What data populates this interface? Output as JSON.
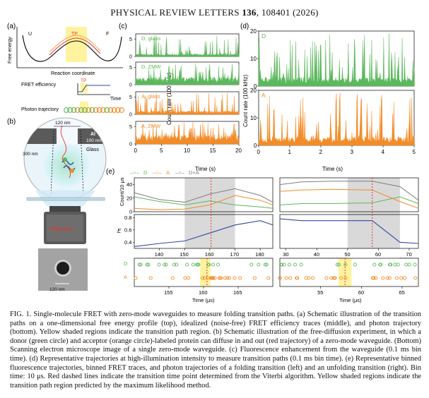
{
  "header": {
    "journal": "PHYSICAL REVIEW LETTERS",
    "volume": "136",
    "article": "108401 (2026)"
  },
  "panel_a": {
    "label": "(a)",
    "state_left": "U",
    "state_tp": "TP",
    "state_right": "F",
    "ylabel": "Free energy",
    "xlabel": "Reaction coordinate",
    "fret_label": "FRET efficiency",
    "tp_label": "TP",
    "time_label": "Time",
    "photon_label": "Photon trajectory"
  },
  "panel_b": {
    "label": "(b)",
    "width_label": "120 nm",
    "al_label": "Al",
    "al_thickness": "100 nm",
    "depth_label": "300 nm",
    "glass_label": "Glass",
    "objective_label": "Objective",
    "sem_scale": "120 nm"
  },
  "colors": {
    "donor": "#5cb85c",
    "acceptor": "#f28c28",
    "sum": "#7f7f7f",
    "fret": "#2e4a9e",
    "tp_line": "#e8352a",
    "tp_shade": "#fff3a0",
    "gray_shade": "#d9d9d9"
  },
  "chart_data": [
    {
      "panel": "(c)",
      "type": "line",
      "ylabel": "Count rate (100 kHz)",
      "xlabel": "Time (s)",
      "xlim": [
        0,
        20
      ],
      "ylim": [
        0,
        5
      ],
      "xticks": [
        0,
        5,
        10,
        15,
        20
      ],
      "traces": [
        {
          "name": "D, glass",
          "color": "#5cb85c",
          "mean": 0.6,
          "yticks": [
            0,
            5
          ]
        },
        {
          "name": "D, ZMW",
          "color": "#5cb85c",
          "mean": 1.8,
          "yticks": [
            0,
            5
          ]
        },
        {
          "name": "A, glass",
          "color": "#f28c28",
          "mean": 0.8,
          "yticks": [
            0,
            5
          ]
        },
        {
          "name": "A, ZMW",
          "color": "#f28c28",
          "mean": 2.0,
          "yticks": [
            0,
            5
          ]
        }
      ]
    },
    {
      "panel": "(d)",
      "type": "line",
      "ylabel": "Count rate (100 kHz)",
      "xlabel": "Time (s)",
      "xlim": [
        0,
        5
      ],
      "xticks": [
        0,
        1,
        2,
        3,
        4,
        5
      ],
      "traces": [
        {
          "name": "D",
          "color": "#5cb85c",
          "ylim": [
            0,
            20
          ],
          "yticks": [
            0,
            10,
            20
          ]
        },
        {
          "name": "A",
          "color": "#f28c28",
          "ylim": [
            0,
            20
          ],
          "yticks": [
            0,
            10,
            20
          ]
        }
      ]
    },
    {
      "panel": "(e)",
      "type": "line",
      "legend": [
        "D",
        "A",
        "D+A"
      ],
      "count_ylabel": "Count/10 μs",
      "count_yticks": [
        0,
        20,
        40
      ],
      "fret_ylabel": "E",
      "fret_yticks": [
        0.4,
        0.6,
        0.8
      ],
      "xlabel": "Time (μs)",
      "left": {
        "x_bins": [
          130,
          140,
          150,
          160,
          170,
          180,
          185
        ],
        "xticks_top": [
          140,
          150,
          160,
          170,
          180
        ],
        "xlim_top": [
          130,
          185
        ],
        "shade": [
          150,
          170
        ],
        "tp_time": 160.5,
        "d_counts": [
          22,
          15,
          10,
          16,
          10,
          7,
          5
        ],
        "a_counts": [
          5,
          3,
          4,
          10,
          24,
          17,
          10
        ],
        "da_counts": [
          28,
          18,
          14,
          26,
          34,
          24,
          14
        ],
        "fret": [
          0.33,
          0.38,
          0.42,
          0.55,
          0.68,
          0.75,
          0.68
        ],
        "xticks_photon": [
          155,
          160,
          165
        ],
        "xlim_photon": [
          150,
          170
        ],
        "tp_region": [
          159.5,
          161.0
        ]
      },
      "right": {
        "x_bins": [
          28,
          35,
          45,
          58,
          67,
          73
        ],
        "xticks_top": [
          30,
          40,
          50,
          60,
          70
        ],
        "xlim_top": [
          28,
          73
        ],
        "shade": [
          50,
          67
        ],
        "tp_time": 58,
        "d_counts": [
          10,
          12,
          12,
          13,
          22,
          12
        ],
        "a_counts": [
          30,
          32,
          33,
          32,
          15,
          5
        ],
        "da_counts": [
          40,
          44,
          45,
          45,
          37,
          17
        ],
        "fret": [
          0.78,
          0.75,
          0.75,
          0.75,
          0.4,
          0.38
        ],
        "xticks_photon": [
          55,
          60,
          65
        ],
        "xlim_photon": [
          50,
          67
        ],
        "tp_region": [
          57.2,
          58.8
        ]
      }
    }
  ],
  "caption": {
    "label": "FIG. 1.",
    "text": "Single-molecule FRET with zero-mode waveguides to measure folding transition paths. (a) Schematic illustration of the transition paths on a one-dimensional free energy profile (top), idealized (noise-free) FRET efficiency traces (middle), and photon trajectory (bottom). Yellow shaded regions indicate the transition path region. (b) Schematic illustration of the free-diffusion experiment, in which a donor (green circle) and acceptor (orange circle)-labeled protein can diffuse in and out (red trajectory) of a zero-mode waveguide. (Bottom) Scanning electron microscope image of a single zero-mode waveguide. (c) Fluorescence enhancement from the waveguide (0.1 ms bin time). (d) Representative trajectories at high-illumination intensity to measure transition paths (0.1 ms bin time). (e) Representative binned fluorescence trajectories, binned FRET traces, and photon trajectories of a folding transition (left) and an unfolding transition (right). Bin time: 10 μs. Red dashed lines indicate the transition time point determined from the Viterbi algorithm. Yellow shaded regions indicate the transition path region predicted by the maximum likelihood method."
  }
}
